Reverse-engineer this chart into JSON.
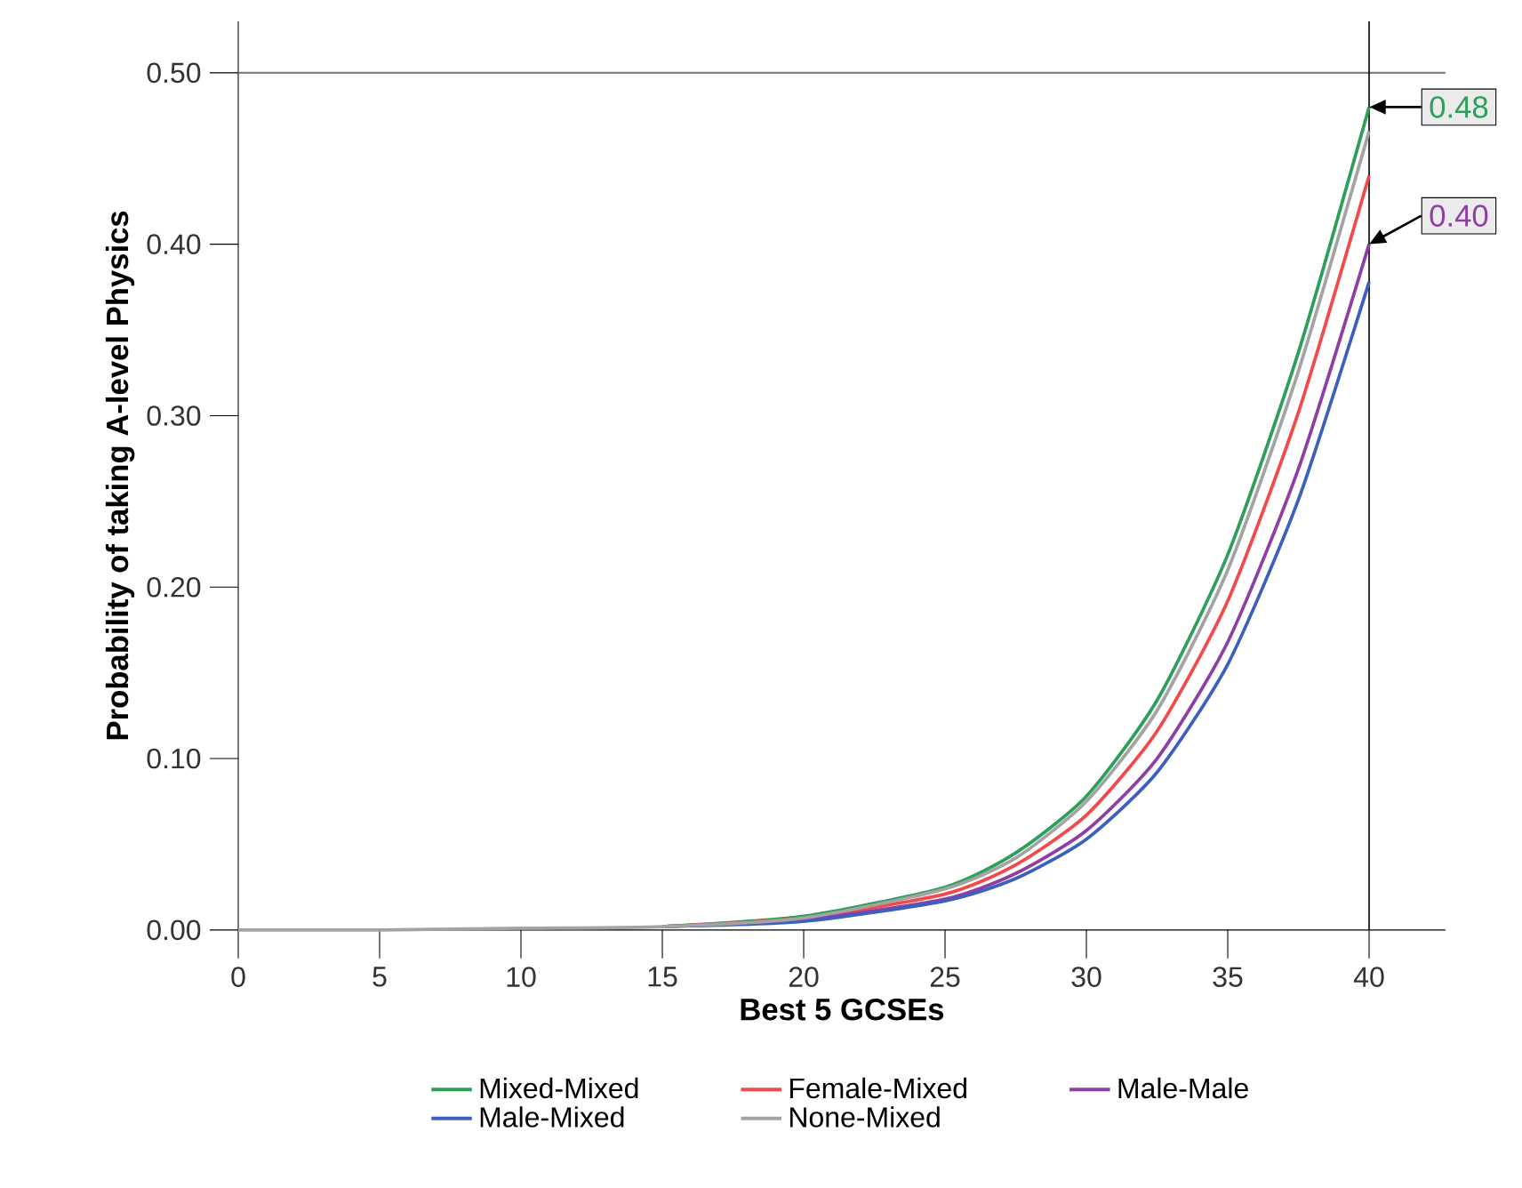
{
  "chart_data": {
    "type": "line",
    "xlabel": "Best 5 GCSEs",
    "ylabel": "Probability of taking A-level Physics",
    "x": [
      0,
      5,
      10,
      15,
      20,
      25,
      27.5,
      30,
      32.5,
      35,
      37.5,
      40
    ],
    "series": [
      {
        "name": "Mixed-Mixed",
        "color": "#2e9e5b",
        "values": [
          null,
          null,
          null,
          0.002,
          0.008,
          0.025,
          0.045,
          0.078,
          0.134,
          0.219,
          0.337,
          0.48
        ]
      },
      {
        "name": "Female-Mixed",
        "color": "#f24a4a",
        "values": [
          null,
          null,
          null,
          0.002,
          0.007,
          0.021,
          0.038,
          0.067,
          0.116,
          0.192,
          0.302,
          0.44
        ]
      },
      {
        "name": "Male-Male",
        "color": "#8e3fa3",
        "values": [
          null,
          null,
          null,
          0.002,
          0.006,
          0.018,
          0.033,
          0.058,
          0.1,
          0.168,
          0.269,
          0.4
        ]
      },
      {
        "name": "Male-Mixed",
        "color": "#3c5fc0",
        "values": [
          null,
          null,
          null,
          0.002,
          0.005,
          0.017,
          0.03,
          0.053,
          0.092,
          0.155,
          0.251,
          0.378
        ]
      },
      {
        "name": "None-Mixed",
        "color": "#a3a3a3",
        "values": [
          0.0,
          0.0,
          0.001,
          0.002,
          0.007,
          0.024,
          0.042,
          0.075,
          0.128,
          0.21,
          0.326,
          0.466
        ]
      }
    ],
    "xlim": [
      0,
      42.7
    ],
    "ylim": [
      0,
      0.53
    ],
    "xticks": [
      0,
      5,
      10,
      15,
      20,
      25,
      30,
      35,
      40
    ],
    "yticks": [
      {
        "value": 0,
        "label": "0.00"
      },
      {
        "value": 0.1,
        "label": "0.10"
      },
      {
        "value": 0.2,
        "label": "0.20"
      },
      {
        "value": 0.3,
        "label": "0.30"
      },
      {
        "value": 0.4,
        "label": "0.40"
      },
      {
        "value": 0.5,
        "label": "0.50"
      }
    ],
    "ref_lines": [
      {
        "axis": "y",
        "value": 0.5,
        "color": "#808080"
      },
      {
        "axis": "x",
        "value": 40,
        "color": "#000000"
      }
    ],
    "annotations": [
      {
        "text": "0.48",
        "x": 40,
        "y": 0.48
      },
      {
        "text": "0.40",
        "x": 40,
        "y": 0.4
      }
    ],
    "legend": "bottom",
    "grid": false,
    "marker": "none",
    "line_style": "solid"
  }
}
